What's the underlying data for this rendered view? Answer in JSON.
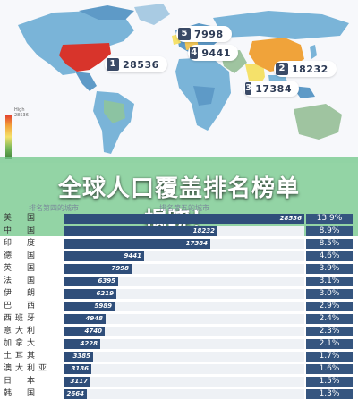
{
  "map": {
    "callouts": [
      {
        "rank": "1",
        "value": "28536"
      },
      {
        "rank": "2",
        "value": "18232"
      },
      {
        "rank": "3",
        "value": "17384"
      },
      {
        "rank": "4",
        "value": "9441"
      },
      {
        "rank": "5",
        "value": "7998"
      }
    ],
    "legend": {
      "high_label": "High",
      "high_value": "28536"
    },
    "colors": {
      "usa": "#d8342b",
      "china": "#f0a33a",
      "land": "#7ab4d8",
      "land_alt": "#5e9ac7"
    }
  },
  "banner": {
    "line1": "全球人口覆盖排名榜单",
    "line2": "揭晓！"
  },
  "subheads": {
    "left": "排名第四的城市",
    "right": "排名第五的城市"
  },
  "table": {
    "rows": [
      {
        "name": "美　国",
        "value": 28536,
        "value_label": "28536",
        "pct": "13.9%"
      },
      {
        "name": "中　国",
        "value": 18232,
        "value_label": "18232",
        "pct": "8.9%"
      },
      {
        "name": "印　度",
        "value": 17384,
        "value_label": "17384",
        "pct": "8.5%"
      },
      {
        "name": "德　国",
        "value": 9441,
        "value_label": "9441",
        "pct": "4.6%"
      },
      {
        "name": "英　国",
        "value": 7998,
        "value_label": "7998",
        "pct": "3.9%"
      },
      {
        "name": "法　国",
        "value": 6395,
        "value_label": "6395",
        "pct": "3.1%"
      },
      {
        "name": "伊　朗",
        "value": 6219,
        "value_label": "6219",
        "pct": "3.0%"
      },
      {
        "name": "巴　西",
        "value": 5989,
        "value_label": "5989",
        "pct": "2.9%"
      },
      {
        "name": "西班牙",
        "value": 4948,
        "value_label": "4948",
        "pct": "2.4%"
      },
      {
        "name": "意大利",
        "value": 4740,
        "value_label": "4740",
        "pct": "2.3%"
      },
      {
        "name": "加拿大",
        "value": 4228,
        "value_label": "4228",
        "pct": "2.1%"
      },
      {
        "name": "土耳其",
        "value": 3385,
        "value_label": "3385",
        "pct": "1.7%"
      },
      {
        "name": "澳大利亚",
        "value": 3186,
        "value_label": "3186",
        "pct": "1.6%"
      },
      {
        "name": "日　本",
        "value": 3117,
        "value_label": "3117",
        "pct": "1.5%"
      },
      {
        "name": "韩　国",
        "value": 2664,
        "value_label": "2664",
        "pct": "1.3%"
      }
    ]
  }
}
